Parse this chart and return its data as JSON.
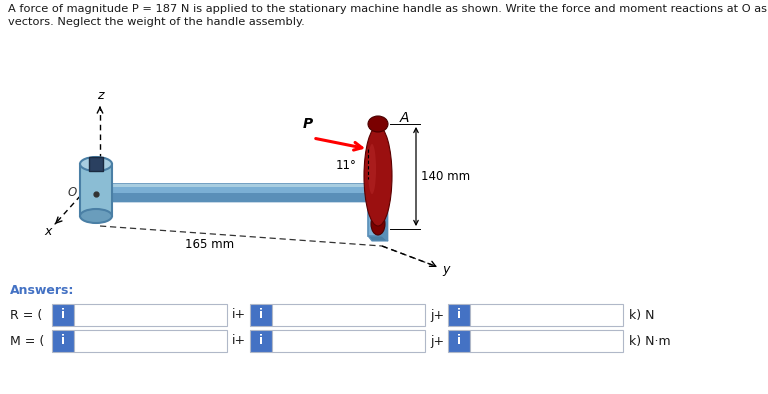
{
  "title_line1": "A force of magnitude P = 187 N is applied to the stationary machine handle as shown. Write the force and moment reactions at O as",
  "title_line2": "vectors. Neglect the weight of the handle assembly.",
  "answers_label": "Answers:",
  "R_label": "R = (",
  "M_label": "M = (",
  "k_N": "k) N",
  "k_Nm": "k) N·m",
  "box_color": "#4472c4",
  "box_bg": "#ffffff",
  "box_border": "#b0b8c8",
  "bg_color": "#ffffff",
  "dim_140": "140 mm",
  "dim_165": "165 mm",
  "angle_label": "11°",
  "P_label": "P",
  "A_label": "A",
  "z_label": "z",
  "x_label": "x",
  "y_label": "y",
  "O_label": "O",
  "arm_color": "#7bafd4",
  "arm_dark": "#5a8fb8",
  "arm_light": "#a8cde0",
  "cyl_color": "#8bbdd4",
  "handle_dark": "#7a0000",
  "handle_mid": "#9b1010",
  "handle_light": "#c03030",
  "title_color": "#1a1a1a",
  "answers_color": "#4472c4",
  "text_color": "#1a1a1a"
}
